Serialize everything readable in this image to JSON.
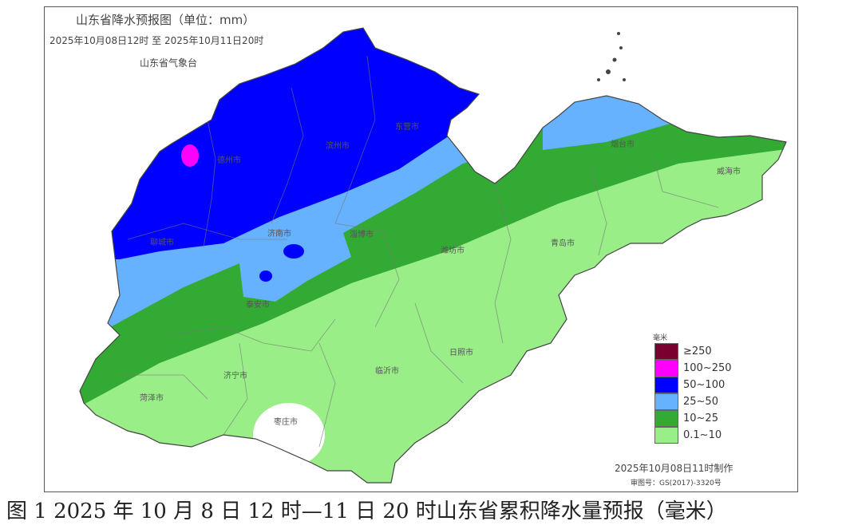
{
  "map": {
    "title": "山东省降水预报图（单位：mm）",
    "period": "2025年10月08日12时  至  2025年10月11日20时",
    "issuer": "山东省气象台",
    "made_time": "2025年10月08日11时制作",
    "review_number": "审图号：GS(2017)-3320号",
    "cities": [
      "德州市",
      "滨州市",
      "东营市",
      "烟台市",
      "威海市",
      "聊城市",
      "济南市",
      "淄博市",
      "潍坊市",
      "青岛市",
      "泰安市",
      "济宁市",
      "临沂市",
      "日照市",
      "菏泽市",
      "枣庄市"
    ],
    "legend": {
      "unit": "毫米",
      "items": [
        {
          "label": "≥250",
          "color": "#7a0030"
        },
        {
          "label": "100~250",
          "color": "#ff00ff"
        },
        {
          "label": "50~100",
          "color": "#0000ff"
        },
        {
          "label": "25~50",
          "color": "#66b2ff"
        },
        {
          "label": "10~25",
          "color": "#33aa33"
        },
        {
          "label": "0.1~10",
          "color": "#99ee88"
        }
      ]
    }
  },
  "caption": "图 1 2025 年 10 月 8 日 12 时—11 日 20 时山东省累积降水量预报（毫米）"
}
